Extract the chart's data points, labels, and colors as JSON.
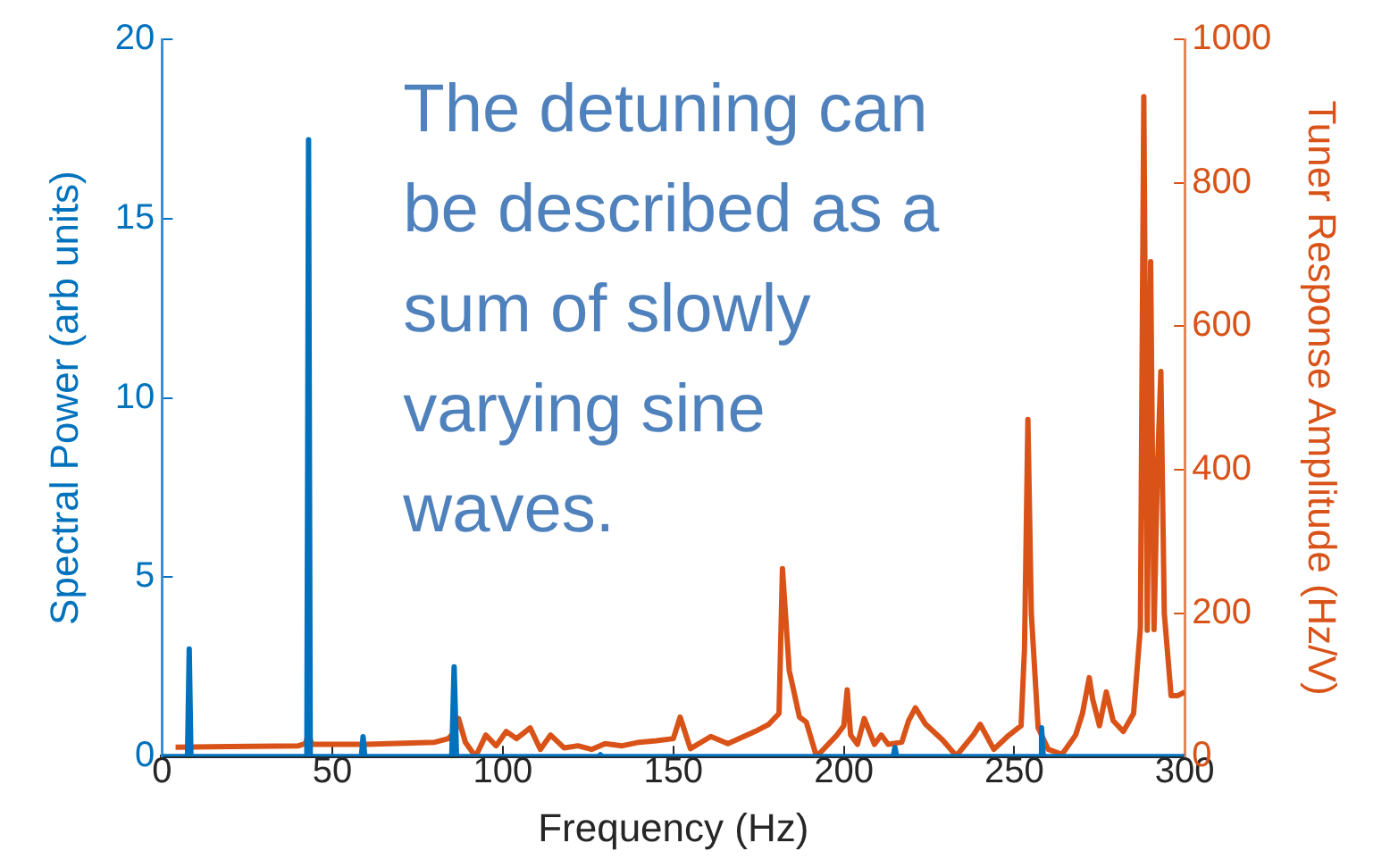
{
  "chart_data": {
    "type": "line",
    "xlabel": "Frequency (Hz)",
    "ylabel": "Spectral Power (arb units)",
    "y2label": "Tuner Response Amplitude (Hz/V)",
    "xlim": [
      0,
      300
    ],
    "xticks": [
      0,
      50,
      100,
      150,
      200,
      250,
      300
    ],
    "ylim": [
      0,
      20
    ],
    "yticks": [
      0,
      5,
      10,
      15,
      20
    ],
    "y2lim": [
      0,
      1000
    ],
    "y2ticks": [
      0,
      200,
      400,
      600,
      800,
      1000
    ],
    "grid": false,
    "legend": false,
    "marker": "none",
    "annotations": [
      "The detuning can be described as a sum of slowly varying sine waves."
    ],
    "series": [
      {
        "color": "#0072bd",
        "x": [
          0,
          7.5,
          8,
          8.5,
          42.5,
          43,
          43.5,
          58.5,
          59,
          59.5,
          85,
          85.7,
          86.4,
          128,
          128.6,
          129.2,
          214.5,
          215,
          215.5,
          257.5,
          258,
          258.5,
          300
        ],
        "values": [
          0,
          0,
          3,
          0,
          0,
          17.2,
          0,
          0,
          0.55,
          0,
          0,
          2.5,
          0,
          0,
          0.05,
          0,
          0,
          0.25,
          0,
          0,
          0.8,
          0,
          0
        ]
      },
      {
        "color": "#d95319",
        "axis": "y2",
        "x": [
          4,
          20,
          40,
          42,
          43,
          44,
          60,
          80,
          84,
          86,
          87,
          89,
          92,
          95,
          98,
          101,
          104,
          108,
          111,
          114,
          118,
          122,
          126,
          130,
          135,
          140,
          145,
          150,
          152,
          155,
          161,
          166,
          174,
          178,
          181,
          182,
          184,
          187,
          189,
          192,
          198,
          200,
          201,
          202,
          204,
          206,
          209,
          211,
          213,
          217,
          219,
          221,
          224,
          229,
          233,
          238,
          240,
          244,
          248,
          252,
          253,
          254,
          255,
          257,
          260,
          264,
          268,
          270,
          272,
          273,
          275,
          277,
          279,
          282,
          285,
          287,
          288,
          289,
          290,
          291,
          292,
          293,
          294,
          296,
          298,
          300
        ],
        "values": [
          13,
          14,
          15,
          18,
          30,
          17,
          17,
          20,
          25,
          35,
          53,
          20,
          0,
          30,
          15,
          35,
          25,
          40,
          10,
          30,
          12,
          15,
          10,
          18,
          15,
          20,
          22,
          25,
          55,
          11,
          28,
          18,
          35,
          45,
          60,
          262,
          120,
          55,
          48,
          0,
          30,
          43,
          93,
          30,
          17,
          53,
          17,
          30,
          17,
          20,
          50,
          68,
          45,
          23,
          1,
          30,
          45,
          10,
          28,
          43,
          150,
          470,
          200,
          40,
          10,
          3,
          30,
          60,
          110,
          80,
          43,
          90,
          50,
          35,
          60,
          180,
          920,
          176,
          690,
          177,
          400,
          537,
          200,
          85,
          85,
          90
        ]
      }
    ]
  }
}
